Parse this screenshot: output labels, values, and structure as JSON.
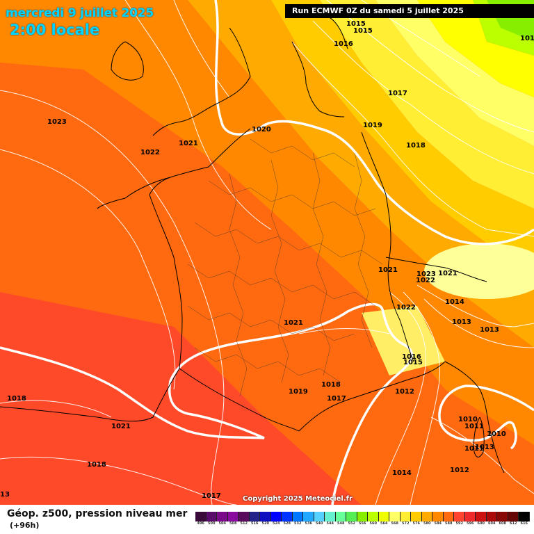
{
  "header": {
    "date": "mercredi 9 juillet 2025",
    "time": "2:00 locale",
    "run": "Run ECMWF 0Z du samedi 5 juillet 2025"
  },
  "copyright": "Copyright 2025 Meteociel.fr",
  "footer": {
    "title": "Géop. z500, pression niveau mer",
    "subtitle": "(+96h)"
  },
  "scale": {
    "labels": [
      "496",
      "500",
      "504",
      "508",
      "512",
      "516",
      "520",
      "524",
      "528",
      "532",
      "536",
      "540",
      "544",
      "548",
      "552",
      "556",
      "560",
      "564",
      "568",
      "572",
      "576",
      "580",
      "584",
      "588",
      "592",
      "596",
      "600",
      "604",
      "608",
      "612",
      "616"
    ],
    "colors": [
      "#3a0a3a",
      "#5a0a6a",
      "#7a0a8a",
      "#8a0aa0",
      "#5a0a5a",
      "#22228a",
      "#1010c0",
      "#0000ff",
      "#0033ff",
      "#0077ff",
      "#22a8ff",
      "#55d0ff",
      "#66f0d0",
      "#66ff99",
      "#55ee55",
      "#88ee00",
      "#bbff00",
      "#eeff00",
      "#ffff66",
      "#ffee33",
      "#ffcc00",
      "#ffaa00",
      "#ff8800",
      "#ff6a10",
      "#ff4430",
      "#ee2a2a",
      "#cc1111",
      "#aa0a0a",
      "#880808",
      "#660505",
      "#000000"
    ]
  },
  "pressure_labels": [
    {
      "value": "1015"
    },
    {
      "value": "1015"
    },
    {
      "value": "1016"
    },
    {
      "value": "1012"
    },
    {
      "value": "1017"
    },
    {
      "value": "1019"
    },
    {
      "value": "1018"
    },
    {
      "value": "1020"
    },
    {
      "value": "1023"
    },
    {
      "value": "1022"
    },
    {
      "value": "1021"
    },
    {
      "value": "1021"
    },
    {
      "value": "1023"
    },
    {
      "value": "1021"
    },
    {
      "value": "1022"
    },
    {
      "value": "1022"
    },
    {
      "value": "1014"
    },
    {
      "value": "1013"
    },
    {
      "value": "1013"
    },
    {
      "value": "1021"
    },
    {
      "value": "1016"
    },
    {
      "value": "1015"
    },
    {
      "value": "1019"
    },
    {
      "value": "1018"
    },
    {
      "value": "1018"
    },
    {
      "value": "1017"
    },
    {
      "value": "1012"
    },
    {
      "value": "1021"
    },
    {
      "value": "1010"
    },
    {
      "value": "1011"
    },
    {
      "value": "1010"
    },
    {
      "value": "1011"
    },
    {
      "value": "1013"
    },
    {
      "value": "1018"
    },
    {
      "value": "1014"
    },
    {
      "value": "1012"
    },
    {
      "value": "1017"
    },
    {
      "value": "13"
    }
  ]
}
